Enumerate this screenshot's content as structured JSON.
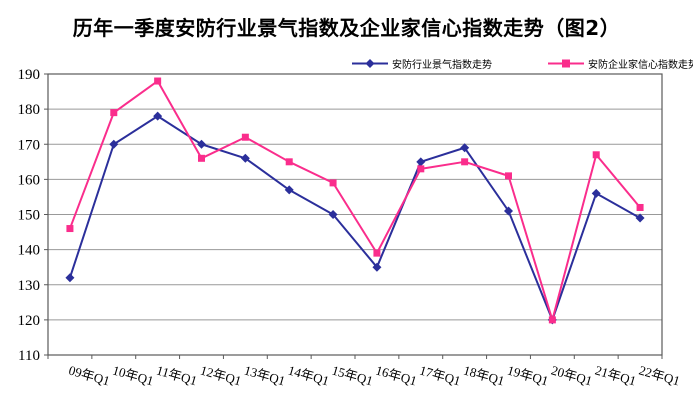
{
  "title": "历年一季度安防行业景气指数及企业家信心指数走势（图2）",
  "colors": {
    "industry_series": "#2B2F9B",
    "confidence_series": "#FA2D8C",
    "gridline": "#999999",
    "frame": "#595959",
    "text": "#000000",
    "background": "#FFFFFF"
  },
  "chart_data": {
    "type": "line",
    "title": "历年一季度安防行业景气指数及企业家信心指数走势（图2）",
    "categories": [
      "09年Q1",
      "10年Q1",
      "11年Q1",
      "12年Q1",
      "13年Q1",
      "14年Q1",
      "15年Q1",
      "16年Q1",
      "17年Q1",
      "18年Q1",
      "19年Q1",
      "20年Q1",
      "21年Q1",
      "22年Q1"
    ],
    "series": [
      {
        "name": "安防行业景气指数走势",
        "marker": "diamond",
        "color": "#2B2F9B",
        "values": [
          132,
          170,
          178,
          170,
          166,
          157,
          150,
          135,
          165,
          169,
          151,
          120,
          156,
          149
        ]
      },
      {
        "name": "安防企业家信心指数走势",
        "marker": "square",
        "color": "#FA2D8C",
        "values": [
          146,
          179,
          188,
          166,
          172,
          165,
          159,
          139,
          163,
          165,
          161,
          120,
          167,
          152
        ]
      }
    ],
    "ylim": [
      110,
      190
    ],
    "ytick_step": 10,
    "yticks": [
      110,
      120,
      130,
      140,
      150,
      160,
      170,
      180,
      190
    ],
    "grid": true,
    "legend_position": "top-right",
    "xlabel": "",
    "ylabel": ""
  }
}
